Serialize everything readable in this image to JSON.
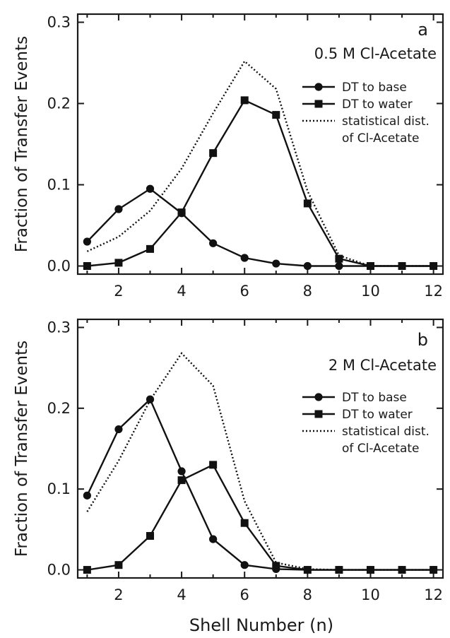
{
  "xlabel": "Shell Number (n)",
  "chart_data": [
    {
      "type": "line",
      "panel_letter": "a",
      "title": "0.5 M Cl-Acetate",
      "ylabel": "Fraction of Transfer Events",
      "xlabel": "Shell Number (n)",
      "xlim": [
        0.7,
        12.3
      ],
      "ylim": [
        -0.01,
        0.31
      ],
      "xticks": [
        2,
        4,
        6,
        8,
        10,
        12
      ],
      "yticks": [
        0.0,
        0.1,
        0.2,
        0.3
      ],
      "ytick_labels": [
        "0.0",
        "0.1",
        "0.2",
        "0.3"
      ],
      "legend_position": "right",
      "x": [
        1,
        2,
        3,
        4,
        5,
        6,
        7,
        8,
        9,
        10,
        11,
        12
      ],
      "series": [
        {
          "name": "DT to base",
          "marker": "circle",
          "style": "solid",
          "values": [
            0.03,
            0.07,
            0.095,
            0.065,
            0.028,
            0.01,
            0.003,
            0.0,
            0.0,
            0.0,
            0.0,
            0.0
          ]
        },
        {
          "name": "DT to water",
          "marker": "square",
          "style": "solid",
          "values": [
            0.0,
            0.004,
            0.021,
            0.066,
            0.139,
            0.204,
            0.186,
            0.077,
            0.009,
            0.0,
            0.0,
            0.0
          ]
        },
        {
          "name": "statistical dist. of Cl-Acetate",
          "legend_lines": [
            "statistical dist.",
            "of Cl-Acetate"
          ],
          "marker": "none",
          "style": "dotted",
          "values": [
            0.018,
            0.036,
            0.068,
            0.12,
            0.188,
            0.252,
            0.218,
            0.092,
            0.013,
            0.0,
            0.0,
            0.0
          ]
        }
      ]
    },
    {
      "type": "line",
      "panel_letter": "b",
      "title": "2 M Cl-Acetate",
      "ylabel": "Fraction of Transfer Events",
      "xlabel": "Shell Number (n)",
      "xlim": [
        0.7,
        12.3
      ],
      "ylim": [
        -0.01,
        0.31
      ],
      "xticks": [
        2,
        4,
        6,
        8,
        10,
        12
      ],
      "yticks": [
        0.0,
        0.1,
        0.2,
        0.3
      ],
      "ytick_labels": [
        "0.0",
        "0.1",
        "0.2",
        "0.3"
      ],
      "legend_position": "right",
      "x": [
        1,
        2,
        3,
        4,
        5,
        6,
        7,
        8,
        9,
        10,
        11,
        12
      ],
      "series": [
        {
          "name": "DT to base",
          "marker": "circle",
          "style": "solid",
          "values": [
            0.092,
            0.174,
            0.211,
            0.122,
            0.038,
            0.006,
            0.001,
            0.0,
            0.0,
            0.0,
            0.0,
            0.0
          ]
        },
        {
          "name": "DT to water",
          "marker": "square",
          "style": "solid",
          "values": [
            0.0,
            0.006,
            0.042,
            0.111,
            0.13,
            0.058,
            0.005,
            0.0,
            0.0,
            0.0,
            0.0,
            0.0
          ]
        },
        {
          "name": "statistical dist. of Cl-Acetate",
          "legend_lines": [
            "statistical dist.",
            "of Cl-Acetate"
          ],
          "marker": "none",
          "style": "dotted",
          "values": [
            0.072,
            0.135,
            0.21,
            0.268,
            0.228,
            0.085,
            0.009,
            0.001,
            0.0,
            0.0,
            0.0,
            0.0
          ]
        }
      ]
    }
  ]
}
